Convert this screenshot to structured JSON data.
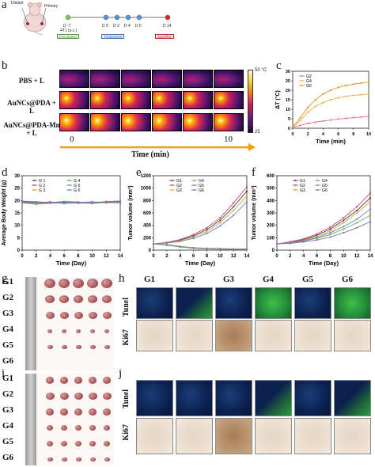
{
  "panel_a": {
    "label": "a",
    "mouse_labels": {
      "distant": "Distant",
      "primary": "Primary"
    },
    "timeline": [
      {
        "day": "D -7",
        "sub": "4T1 (s.c.)",
        "color": "#7fbf5a"
      },
      {
        "day": "D 0",
        "color": "#5b8fd0"
      },
      {
        "day": "D 2",
        "color": "#5b8fd0"
      },
      {
        "day": "D 4",
        "color": "#5b8fd0"
      },
      {
        "day": "D 6",
        "color": "#5b8fd0"
      },
      {
        "day": "D 14",
        "color": "#d23030"
      }
    ],
    "boxes": [
      {
        "text": "Inoculation",
        "color": "#4f9a3a"
      },
      {
        "text": "Treatments",
        "color": "#3f6fb0"
      },
      {
        "text": "Sacrifice",
        "color": "#c02020"
      }
    ]
  },
  "panel_b": {
    "label": "b",
    "rows": [
      "PBS + L",
      "AuNCs@PDA + L",
      "AuNCs@PDA-Mn + L"
    ],
    "colorbar_max": "50 °C",
    "colorbar_min": "25",
    "time_start": "0",
    "time_end": "10",
    "time_label": "Time (min)"
  },
  "panel_c": {
    "label": "c",
    "chart_data": {
      "type": "line",
      "ylabel": "ΔT (°C)",
      "xlabel": "Time (min)",
      "xticks": [
        "0",
        "2",
        "4",
        "6",
        "8",
        "10"
      ],
      "yticks": [
        "0",
        "5",
        "10",
        "15",
        "20",
        "25",
        "30"
      ],
      "xlim": [
        0,
        10
      ],
      "ylim": [
        0,
        30
      ],
      "series": [
        {
          "name": "G2",
          "color": "#e86ba0",
          "x": [
            0,
            1,
            2,
            3,
            4,
            5,
            6,
            7,
            8,
            9,
            10
          ],
          "y": [
            0.5,
            1.5,
            2.5,
            3.2,
            3.8,
            4.3,
            4.8,
            5.2,
            5.6,
            5.9,
            6.2
          ]
        },
        {
          "name": "G4",
          "color": "#e8b04a",
          "x": [
            0,
            1,
            2,
            3,
            4,
            5,
            6,
            7,
            8,
            9,
            10
          ],
          "y": [
            0.5,
            4,
            8.5,
            11.5,
            13.5,
            15,
            16,
            16.8,
            17.3,
            17.6,
            18
          ]
        },
        {
          "name": "G6",
          "color": "#d59a20",
          "x": [
            0,
            1,
            2,
            3,
            4,
            5,
            6,
            7,
            8,
            9,
            10
          ],
          "y": [
            0.5,
            5.5,
            11,
            15,
            18,
            20,
            21.5,
            22.5,
            23.2,
            23.8,
            24.3
          ]
        }
      ]
    }
  },
  "panel_d": {
    "label": "d",
    "chart_data": {
      "type": "line",
      "ylabel": "Average Body Weight (g)",
      "xlabel": "Time (Day)",
      "xticks": [
        "0",
        "2",
        "4",
        "6",
        "8",
        "10",
        "12",
        "14"
      ],
      "yticks": [
        "0",
        "5",
        "10",
        "15",
        "20",
        "25",
        "30"
      ],
      "xlim": [
        0,
        14
      ],
      "ylim": [
        0,
        30
      ],
      "legend": [
        "G 1",
        "G 2",
        "G 3",
        "G 4",
        "G 5",
        "G 6"
      ],
      "series": [
        {
          "name": "G 1",
          "color": "#444444",
          "x": [
            0,
            2,
            4,
            6,
            8,
            10,
            12,
            14
          ],
          "y": [
            19.5,
            19.2,
            19.4,
            19.0,
            19.3,
            19.2,
            19.1,
            19.5
          ]
        },
        {
          "name": "G 2",
          "color": "#d04070",
          "x": [
            0,
            2,
            4,
            6,
            8,
            10,
            12,
            14
          ],
          "y": [
            19.8,
            19.5,
            19.2,
            19.6,
            19.4,
            19.0,
            19.6,
            19.8
          ]
        },
        {
          "name": "G 3",
          "color": "#e0a040",
          "x": [
            0,
            2,
            4,
            6,
            8,
            10,
            12,
            14
          ],
          "y": [
            19.2,
            18.8,
            19.0,
            19.3,
            18.9,
            19.4,
            19.0,
            19.2
          ]
        },
        {
          "name": "G 4",
          "color": "#6aaa5a",
          "x": [
            0,
            2,
            4,
            6,
            8,
            10,
            12,
            14
          ],
          "y": [
            19.0,
            18.5,
            18.9,
            19.1,
            19.0,
            18.8,
            19.2,
            19.0
          ]
        },
        {
          "name": "G 5",
          "color": "#5a8ac0",
          "x": [
            0,
            2,
            4,
            6,
            8,
            10,
            12,
            14
          ],
          "y": [
            19.6,
            19.3,
            19.1,
            19.4,
            19.2,
            19.5,
            19.3,
            19.6
          ]
        },
        {
          "name": "G 6",
          "color": "#8a6ab0",
          "x": [
            0,
            2,
            4,
            6,
            8,
            10,
            12,
            14
          ],
          "y": [
            19.3,
            19.0,
            19.2,
            18.8,
            19.1,
            19.0,
            19.4,
            19.3
          ]
        }
      ]
    }
  },
  "panel_e": {
    "label": "e",
    "chart_data": {
      "type": "line",
      "ylabel": "Tumor volume (mm³)",
      "xlabel": "Time (Day)",
      "xticks": [
        "0",
        "2",
        "4",
        "6",
        "8",
        "10",
        "12",
        "14"
      ],
      "yticks": [
        "0",
        "200",
        "400",
        "600",
        "800",
        "1000",
        "1200"
      ],
      "xlim": [
        0,
        14
      ],
      "ylim": [
        0,
        1200
      ],
      "legend": [
        "G1",
        "G2",
        "G3",
        "G4",
        "G5",
        "G6"
      ],
      "series": [
        {
          "name": "G1",
          "color": "#444444",
          "x": [
            0,
            2,
            4,
            6,
            8,
            10,
            12,
            14
          ],
          "y": [
            100,
            120,
            160,
            230,
            330,
            480,
            700,
            950
          ]
        },
        {
          "name": "G2",
          "color": "#d04070",
          "x": [
            0,
            2,
            4,
            6,
            8,
            10,
            12,
            14
          ],
          "y": [
            100,
            125,
            170,
            250,
            360,
            520,
            760,
            1020
          ]
        },
        {
          "name": "G3",
          "color": "#e0a040",
          "x": [
            0,
            2,
            4,
            6,
            8,
            10,
            12,
            14
          ],
          "y": [
            100,
            118,
            150,
            210,
            300,
            440,
            640,
            870
          ]
        },
        {
          "name": "G4",
          "color": "#6aaa5a",
          "x": [
            0,
            2,
            4,
            6,
            8,
            10,
            12,
            14
          ],
          "y": [
            100,
            90,
            60,
            40,
            30,
            25,
            20,
            20
          ]
        },
        {
          "name": "G5",
          "color": "#5a8ac0",
          "x": [
            0,
            2,
            4,
            6,
            8,
            10,
            12,
            14
          ],
          "y": [
            100,
            115,
            140,
            190,
            270,
            390,
            560,
            780
          ]
        },
        {
          "name": "G6",
          "color": "#8a6ab0",
          "x": [
            0,
            2,
            4,
            6,
            8,
            10,
            12,
            14
          ],
          "y": [
            100,
            80,
            50,
            30,
            20,
            15,
            10,
            10
          ]
        }
      ]
    }
  },
  "panel_f": {
    "label": "f",
    "chart_data": {
      "type": "line",
      "ylabel": "Tumor volume (mm³)",
      "xlabel": "Time (Day)",
      "xticks": [
        "0",
        "2",
        "4",
        "6",
        "8",
        "10",
        "12",
        "14"
      ],
      "yticks": [
        "0",
        "100",
        "200",
        "300",
        "400",
        "500",
        "600"
      ],
      "xlim": [
        0,
        14
      ],
      "ylim": [
        0,
        600
      ],
      "legend": [
        "G1",
        "G2",
        "G3",
        "G4",
        "G5",
        "G6"
      ],
      "series": [
        {
          "name": "G1",
          "color": "#444444",
          "x": [
            0,
            2,
            4,
            6,
            8,
            10,
            12,
            14
          ],
          "y": [
            50,
            65,
            85,
            120,
            170,
            240,
            320,
            420
          ]
        },
        {
          "name": "G2",
          "color": "#d04070",
          "x": [
            0,
            2,
            4,
            6,
            8,
            10,
            12,
            14
          ],
          "y": [
            50,
            68,
            90,
            130,
            185,
            260,
            350,
            460
          ]
        },
        {
          "name": "G3",
          "color": "#e0a040",
          "x": [
            0,
            2,
            4,
            6,
            8,
            10,
            12,
            14
          ],
          "y": [
            50,
            62,
            80,
            110,
            155,
            220,
            300,
            390
          ]
        },
        {
          "name": "G4",
          "color": "#6aaa5a",
          "x": [
            0,
            2,
            4,
            6,
            8,
            10,
            12,
            14
          ],
          "y": [
            50,
            58,
            72,
            95,
            125,
            170,
            220,
            280
          ]
        },
        {
          "name": "G5",
          "color": "#5a8ac0",
          "x": [
            0,
            2,
            4,
            6,
            8,
            10,
            12,
            14
          ],
          "y": [
            50,
            60,
            76,
            100,
            140,
            190,
            250,
            330
          ]
        },
        {
          "name": "G6",
          "color": "#8a6ab0",
          "x": [
            0,
            2,
            4,
            6,
            8,
            10,
            12,
            14
          ],
          "y": [
            50,
            55,
            66,
            82,
            105,
            140,
            180,
            230
          ]
        }
      ]
    }
  },
  "panel_g": {
    "label": "g",
    "groups": [
      "G1",
      "G2",
      "G3",
      "G4",
      "G5",
      "G6"
    ]
  },
  "panel_h": {
    "label": "h",
    "columns": [
      "G1",
      "G2",
      "G3",
      "G4",
      "G5",
      "G6"
    ],
    "rows": [
      "Tunel",
      "Ki67"
    ]
  },
  "panel_i": {
    "label": "i",
    "groups": [
      "G1",
      "G2",
      "G3",
      "G4",
      "G5",
      "G6"
    ]
  },
  "panel_j": {
    "label": "j",
    "rows": [
      "Tunel",
      "Ki67"
    ]
  }
}
